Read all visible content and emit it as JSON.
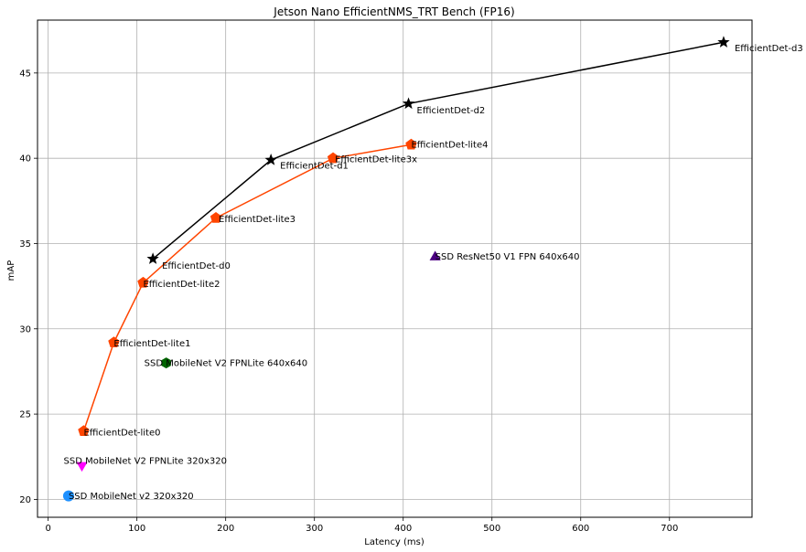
{
  "chart_data": {
    "type": "scatter",
    "title": "Jetson Nano EfficientNMS_TRT Bench (FP16)",
    "xlabel": "Latency (ms)",
    "ylabel": "mAP",
    "xlim": [
      -12,
      793
    ],
    "ylim": [
      18.95,
      48.1
    ],
    "xticks": [
      0,
      100,
      200,
      300,
      400,
      500,
      600,
      700
    ],
    "yticks": [
      20,
      25,
      30,
      35,
      40,
      45
    ],
    "grid": true,
    "series": [
      {
        "color": "#000000",
        "marker": "star",
        "connected": true,
        "points": [
          {
            "x": 118,
            "y": 34.1,
            "label": "EfficientDet-d0"
          },
          {
            "x": 251,
            "y": 39.9,
            "label": "EfficientDet-d1"
          },
          {
            "x": 406,
            "y": 43.2,
            "label": "EfficientDet-d2"
          },
          {
            "x": 761,
            "y": 46.8,
            "label": "EfficientDet-d3"
          }
        ]
      },
      {
        "color": "#ff4500",
        "marker": "pentagon",
        "connected": true,
        "points": [
          {
            "x": 40,
            "y": 24.0,
            "label": "EfficientDet-lite0"
          },
          {
            "x": 74,
            "y": 29.2,
            "label": "EfficientDet-lite1"
          },
          {
            "x": 107,
            "y": 32.7,
            "label": "EfficientDet-lite2"
          },
          {
            "x": 189,
            "y": 36.5,
            "label": "EfficientDet-lite3"
          },
          {
            "x": 321,
            "y": 40.0,
            "label": "EfficientDet-lite3x"
          },
          {
            "x": 409,
            "y": 40.8,
            "label": "EfficientDet-lite4"
          }
        ]
      },
      {
        "color": "#1e90ff",
        "marker": "circle",
        "connected": false,
        "points": [
          {
            "x": 23,
            "y": 20.2,
            "label": "SSD MobileNet v2 320x320"
          }
        ]
      },
      {
        "color": "#ff00ff",
        "marker": "triangle-down",
        "connected": false,
        "points": [
          {
            "x": 38,
            "y": 22.0,
            "label": "SSD MobileNet V2 FPNLite 320x320"
          }
        ]
      },
      {
        "color": "#006400",
        "marker": "hexagon",
        "connected": false,
        "points": [
          {
            "x": 133,
            "y": 28.0,
            "label": "SSD MobileNet V2 FPNLite 640x640"
          }
        ]
      },
      {
        "color": "#4b0082",
        "marker": "triangle-up",
        "connected": false,
        "points": [
          {
            "x": 436,
            "y": 34.2,
            "label": "SSD ResNet50 V1 FPN 640x640"
          }
        ]
      }
    ]
  }
}
